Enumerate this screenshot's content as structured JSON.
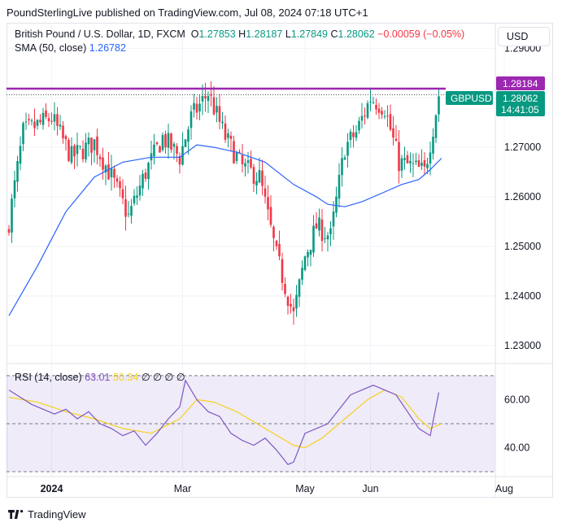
{
  "publisher": "PoundSterlingLive published on TradingView.com, Jul 08, 2024 07:18 UTC+1",
  "header": {
    "instrument": "British Pound / U.S. Dollar, 1D, FXCM",
    "open_label": "O",
    "open": "1.27853",
    "high_label": "H",
    "high": "1.28187",
    "low_label": "L",
    "low": "1.27849",
    "close_label": "C",
    "close": "1.28062",
    "change": "−0.00059 (−0.05%)",
    "sma_label": "SMA (50, close)",
    "sma_value": "1.26782"
  },
  "currency_button": "USD",
  "rsi_header": {
    "label": "RSI (14, close)",
    "rsi_value": "63.01",
    "ma_value": "50.34",
    "extra": "∅ ∅ ∅ ∅"
  },
  "price_tags": {
    "resistance": "1.28184",
    "symbol": "GBPUSD",
    "last": "1.28062",
    "countdown": "14:41:05"
  },
  "footer": {
    "brand": "TradingView"
  },
  "colors": {
    "up": "#089981",
    "down": "#f23645",
    "sma": "#2962ff",
    "resistance": "#9c27b0",
    "rsi": "#7e57c2",
    "rsi_ma": "#f7d11d"
  },
  "chart_data": [
    {
      "type": "candlestick",
      "title": "British Pound / U.S. Dollar, 1D, FXCM",
      "ylim": [
        1.2275,
        1.2935
      ],
      "yticks": [
        1.29,
        1.28,
        1.27,
        1.26,
        1.25,
        1.24,
        1.23
      ],
      "ytick_labels": [
        "1.29000",
        "1.28000",
        "1.27000",
        "1.26000",
        "1.25000",
        "1.24000",
        "1.23000"
      ],
      "xtick_labels": [
        "2024",
        "Mar",
        "May",
        "Jun",
        "Aug"
      ],
      "xtick_index": [
        15,
        61,
        104,
        127,
        174
      ],
      "resistance_level": 1.28184,
      "n_days": 152,
      "close_anchor_index": [
        0,
        5,
        15,
        22,
        30,
        36,
        42,
        48,
        54,
        60,
        64,
        70,
        76,
        82,
        88,
        94,
        100,
        104,
        108,
        113,
        118,
        122,
        127,
        132,
        137,
        142,
        146,
        149,
        151
      ],
      "close_anchor_value": [
        1.255,
        1.273,
        1.276,
        1.268,
        1.271,
        1.264,
        1.256,
        1.265,
        1.272,
        1.268,
        1.276,
        1.281,
        1.272,
        1.266,
        1.264,
        1.248,
        1.236,
        1.248,
        1.254,
        1.252,
        1.27,
        1.273,
        1.28,
        1.278,
        1.267,
        1.266,
        1.265,
        1.274,
        1.2806
      ],
      "sma_x": [
        0,
        10,
        20,
        30,
        40,
        50,
        60,
        66,
        72,
        80,
        90,
        100,
        108,
        112,
        118,
        124,
        132,
        138,
        144,
        148,
        152
      ],
      "sma_y": [
        1.236,
        1.246,
        1.257,
        1.264,
        1.267,
        1.268,
        1.268,
        1.2705,
        1.27,
        1.269,
        1.267,
        1.2625,
        1.26,
        1.2585,
        1.258,
        1.259,
        1.261,
        1.2625,
        1.2635,
        1.2655,
        1.2678
      ]
    },
    {
      "type": "line",
      "title": "RSI (14, close)",
      "ylim": [
        30,
        72
      ],
      "yticks": [
        60,
        40
      ],
      "ytick_labels": [
        "60.00",
        "40.00"
      ],
      "bands": [
        70,
        50,
        30
      ],
      "rsi_x": [
        0,
        4,
        8,
        12,
        16,
        20,
        24,
        28,
        32,
        36,
        40,
        44,
        48,
        52,
        56,
        60,
        62,
        66,
        70,
        74,
        78,
        82,
        86,
        90,
        94,
        98,
        100,
        104,
        108,
        112,
        116,
        120,
        124,
        128,
        132,
        136,
        140,
        144,
        148,
        151
      ],
      "rsi_y": [
        64,
        61,
        58,
        56,
        54,
        56,
        52,
        55,
        50,
        48,
        45,
        47,
        41,
        46,
        52,
        57,
        68,
        60,
        55,
        53,
        46,
        43,
        41,
        44,
        39,
        33,
        34,
        46,
        48,
        50,
        56,
        62,
        64,
        66,
        64,
        62,
        55,
        48,
        45,
        63
      ],
      "rsi_ma_x": [
        0,
        10,
        20,
        30,
        40,
        50,
        60,
        66,
        72,
        80,
        90,
        100,
        104,
        110,
        118,
        126,
        132,
        138,
        144,
        148,
        152
      ],
      "rsi_ma_y": [
        61,
        59,
        55,
        52,
        48,
        46,
        52,
        60,
        59,
        55,
        48,
        41,
        40,
        44,
        52,
        60,
        64,
        61,
        52,
        48,
        50
      ]
    }
  ]
}
